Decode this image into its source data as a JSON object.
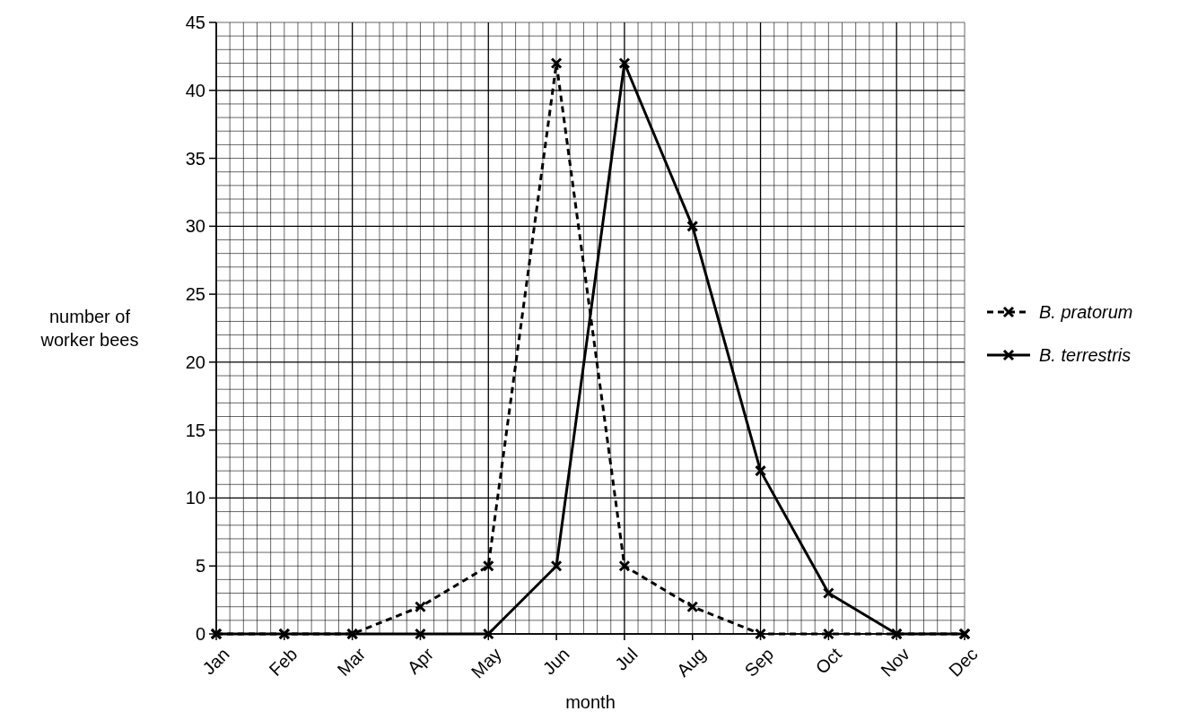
{
  "chart_data": {
    "type": "line",
    "xlabel": "month",
    "ylabel": "number of worker bees",
    "categories": [
      "Jan",
      "Feb",
      "Mar",
      "Apr",
      "May",
      "Jun",
      "Jul",
      "Aug",
      "Sep",
      "Oct",
      "Nov",
      "Dec"
    ],
    "series": [
      {
        "name": "B. pratorum",
        "color": "#000000",
        "line_style": "dashed",
        "values": [
          0,
          0,
          0,
          2,
          5,
          42,
          5,
          2,
          0,
          0,
          0,
          0
        ]
      },
      {
        "name": "B. terrestris",
        "color": "#000000",
        "line_style": "solid",
        "values": [
          0,
          0,
          0,
          0,
          0,
          5,
          42,
          30,
          12,
          3,
          0,
          0
        ]
      }
    ],
    "ylim": [
      0,
      45
    ],
    "yticks": [
      0,
      5,
      10,
      15,
      20,
      25,
      30,
      35,
      40,
      45
    ],
    "grid": true,
    "legend": "right",
    "marker": "cross"
  }
}
